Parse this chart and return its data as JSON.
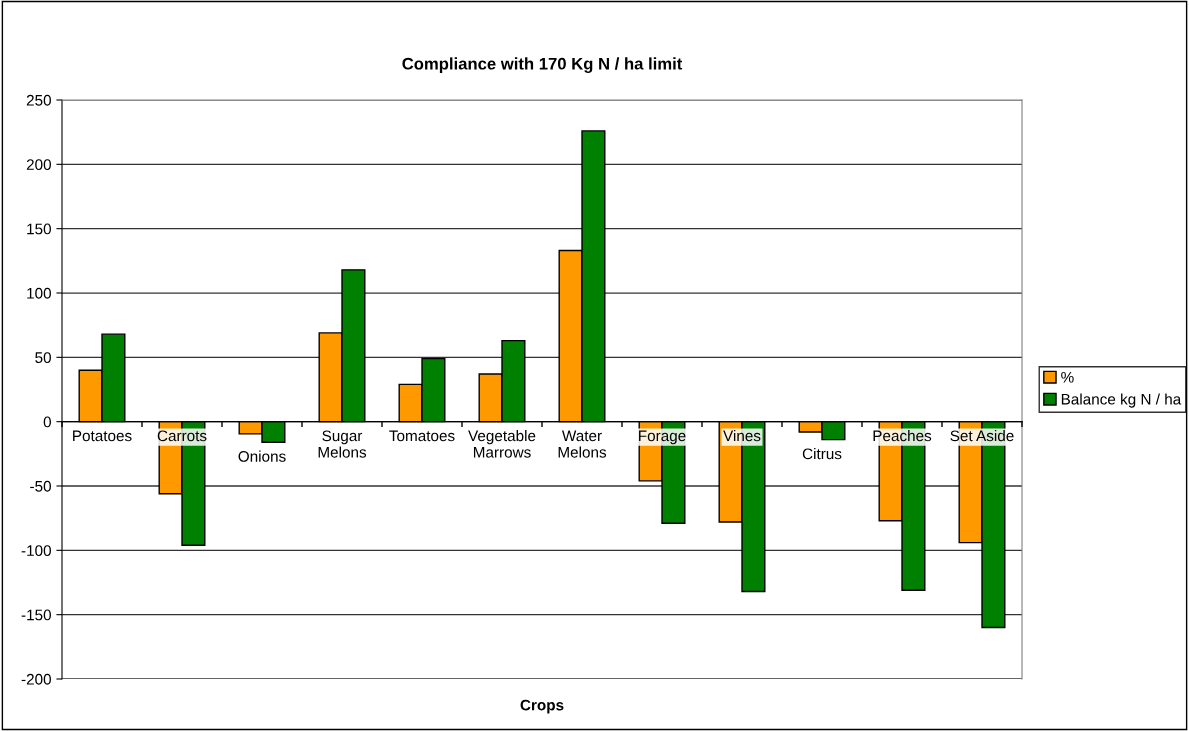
{
  "chart_data": {
    "type": "bar",
    "title": "Compliance with 170 Kg N / ha limit",
    "xlabel": "Crops",
    "categories": [
      "Potatoes",
      "Carrots",
      "Onions",
      "Sugar\nMelons",
      "Tomatoes",
      "Vegetable\nMarrows",
      "Water\nMelons",
      "Forage",
      "Vines",
      "Citrus",
      "Peaches",
      "Set Aside"
    ],
    "series": [
      {
        "name": "%",
        "color": "#ff9900",
        "values": [
          40,
          -56,
          -9.5,
          69,
          29,
          37,
          133,
          -46,
          -78,
          -8,
          -77,
          -94
        ]
      },
      {
        "name": "Balance kg N / ha",
        "color": "#008000",
        "values": [
          68,
          -96,
          -16,
          118,
          49,
          63,
          226,
          -79,
          -132,
          -14,
          -131,
          -160
        ]
      }
    ],
    "ylim": [
      -200,
      250
    ],
    "yticks": [
      -200,
      -150,
      -100,
      -50,
      0,
      50,
      100,
      150,
      200,
      250
    ],
    "grid": "y",
    "legend": "right"
  }
}
